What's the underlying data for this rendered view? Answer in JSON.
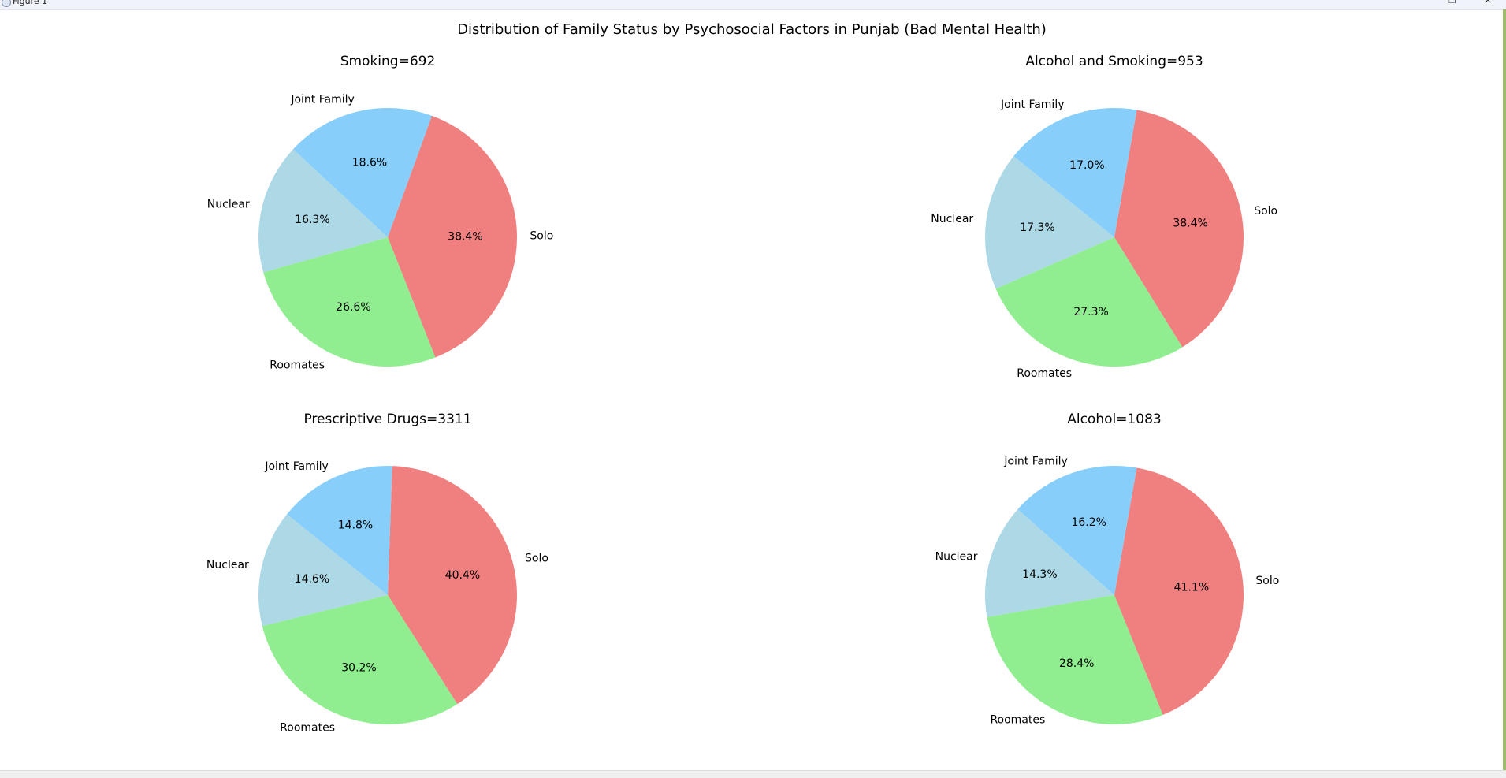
{
  "window": {
    "title": "Figure 1",
    "minimize_icon": "minimize-icon",
    "maximize_icon": "maximize-icon",
    "close_icon": "close-icon",
    "maximize_glyph": "❐",
    "close_glyph": "✕"
  },
  "figure_title": "Distribution of Family Status by Psychosocial Factors in Punjab (Bad Mental Health)",
  "colors": {
    "Solo": "#f08080",
    "Roomates": "#90ee90",
    "Nuclear": "#add8e6",
    "Joint Family": "#87cefa"
  },
  "chart_data": [
    {
      "type": "pie",
      "title": "Smoking=692",
      "labels": [
        "Solo",
        "Roomates",
        "Nuclear",
        "Joint Family"
      ],
      "values": [
        38.4,
        26.6,
        16.3,
        18.6
      ],
      "value_labels": [
        "38.4%",
        "26.6%",
        "16.3%",
        "18.6%"
      ],
      "start_angle_deg": 70
    },
    {
      "type": "pie",
      "title": "Alcohol and Smoking=953",
      "labels": [
        "Solo",
        "Roomates",
        "Nuclear",
        "Joint Family"
      ],
      "values": [
        38.4,
        27.3,
        17.3,
        17.0
      ],
      "value_labels": [
        "38.4%",
        "27.3%",
        "17.3%",
        "17.0%"
      ],
      "start_angle_deg": 80
    },
    {
      "type": "pie",
      "title": "Prescriptive Drugs=3311",
      "labels": [
        "Solo",
        "Roomates",
        "Nuclear",
        "Joint Family"
      ],
      "values": [
        40.4,
        30.2,
        14.6,
        14.8
      ],
      "value_labels": [
        "40.4%",
        "30.2%",
        "14.6%",
        "14.8%"
      ],
      "start_angle_deg": 88
    },
    {
      "type": "pie",
      "title": "Alcohol=1083",
      "labels": [
        "Solo",
        "Roomates",
        "Nuclear",
        "Joint Family"
      ],
      "values": [
        41.1,
        28.4,
        14.3,
        16.2
      ],
      "value_labels": [
        "41.1%",
        "28.4%",
        "14.3%",
        "16.2%"
      ],
      "start_angle_deg": 80
    }
  ]
}
